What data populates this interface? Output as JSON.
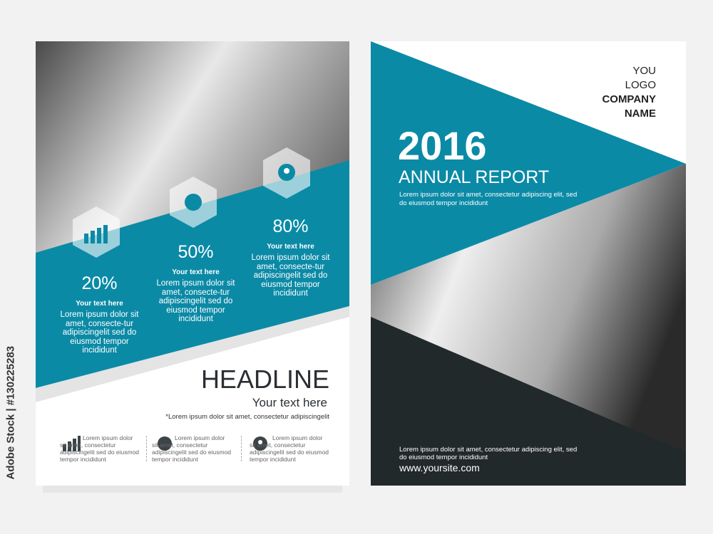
{
  "watermark": "Adobe Stock | #130225283",
  "colors": {
    "accent": "#0b8aa6",
    "dark": "#22292b"
  },
  "left_page": {
    "stats": [
      {
        "icon": "bar-chart-icon",
        "percent": "20%",
        "label": "Your text here",
        "body": "Lorem ipsum dolor sit amet, consecte-tur adipiscingelit sed do eiusmod tempor incididunt"
      },
      {
        "icon": "globe-icon",
        "percent": "50%",
        "label": "Your text here",
        "body": "Lorem ipsum dolor sit amet, consecte-tur adipiscingelit sed do eiusmod tempor incididunt"
      },
      {
        "icon": "location-pin-icon",
        "percent": "80%",
        "label": "Your text here",
        "body": "Lorem ipsum dolor sit amet, consecte-tur adipiscingelit sed do eiusmod tempor incididunt"
      }
    ],
    "headline": "HEADLINE",
    "subhead": "Your text here",
    "note": "*Lorem ipsum dolor sit amet, consectetur adipiscingelit",
    "features": [
      {
        "icon": "bar-chart-icon",
        "text": "Lorem ipsum dolor sit amet, consectetur adipiscingelit sed do eiusmod tempor incididunt"
      },
      {
        "icon": "globe-icon",
        "text": "Lorem ipsum dolor sit amet, consectetur adipiscingelit sed do eiusmod tempor incididunt"
      },
      {
        "icon": "location-pin-icon",
        "text": "Lorem ipsum dolor sit amet, consectetur adipiscingelit sed do eiusmod tempor incididunt"
      }
    ]
  },
  "right_page": {
    "logo": [
      "YOU",
      "LOGO"
    ],
    "company": [
      "COMPANY",
      "NAME"
    ],
    "year": "2016",
    "title": "ANNUAL REPORT",
    "intro": "Lorem ipsum dolor sit amet, consectetur adipiscing elit, sed do eiusmod tempor incididunt",
    "footer_text": "Lorem ipsum dolor sit amet, consectetur adipiscing elit, sed do eiusmod tempor incididunt",
    "website": "www.yoursite.com"
  }
}
